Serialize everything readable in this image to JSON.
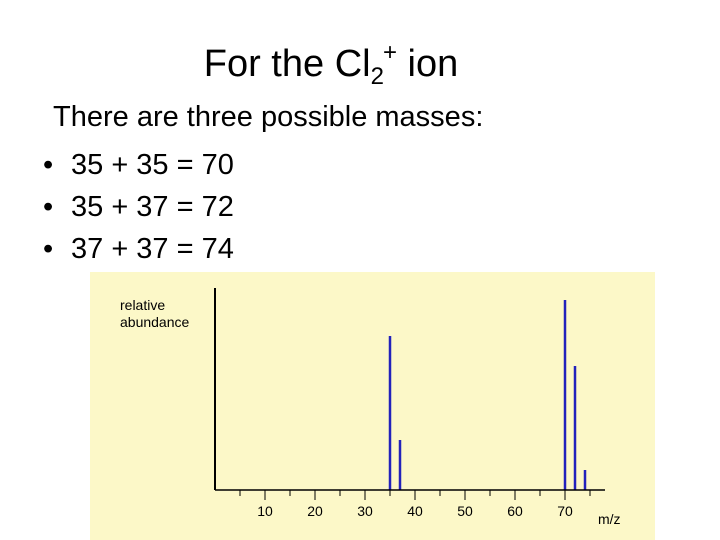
{
  "slide": {
    "title_main": "For the Cl",
    "title_sub": "2",
    "title_sup": "+",
    "title_end": " ion",
    "intro": "There are three possible masses:",
    "bullet_marker": "•",
    "bullets": [
      "35 + 35 = 70",
      "35 + 37 = 72",
      "37 + 37 = 74"
    ]
  },
  "colors": {
    "chart_background": "#fcf8c8",
    "peak_color": "#2222bb",
    "axis_color": "#000000"
  },
  "chart_data": {
    "type": "bar",
    "ylabel": [
      "relative",
      "abundance"
    ],
    "xlabel": "m/z",
    "xlim": [
      0,
      78
    ],
    "ylim": [
      0,
      100
    ],
    "xticks": [
      10,
      20,
      30,
      40,
      50,
      60,
      70
    ],
    "peaks": [
      {
        "x": 35,
        "y": 77
      },
      {
        "x": 37,
        "y": 25
      },
      {
        "x": 70,
        "y": 95
      },
      {
        "x": 72,
        "y": 62
      },
      {
        "x": 74,
        "y": 10
      }
    ]
  }
}
